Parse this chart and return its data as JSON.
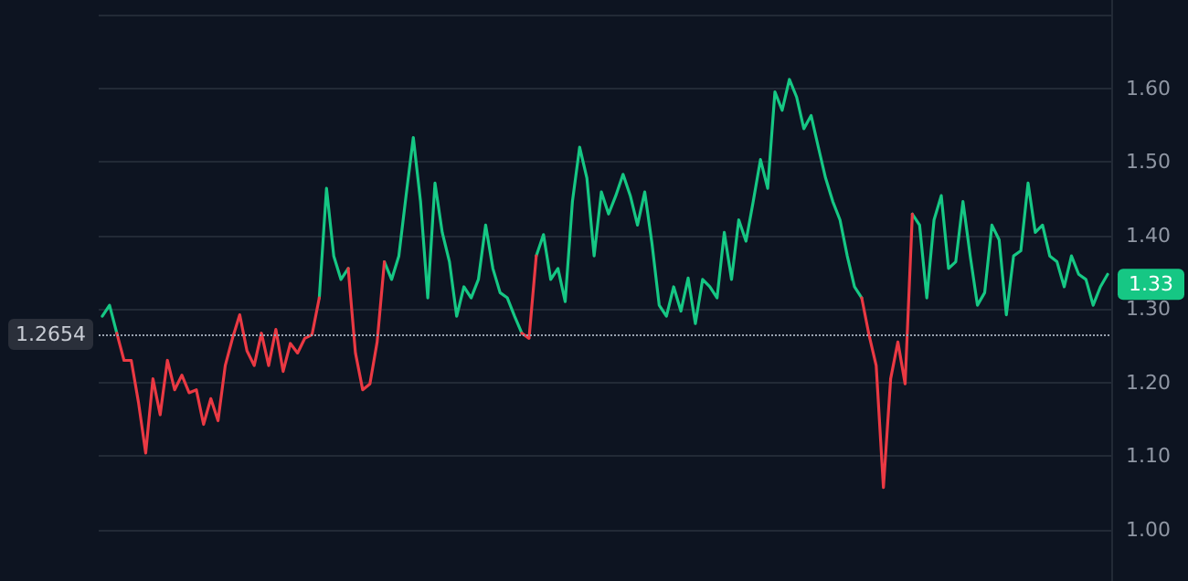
{
  "chart_data": {
    "type": "line",
    "categories": [
      null,
      null,
      null,
      null,
      null,
      null,
      null,
      null,
      null,
      null,
      null,
      null,
      null,
      null,
      null,
      null,
      null,
      null,
      null,
      null,
      null,
      null,
      null,
      null,
      null,
      null,
      null,
      null,
      null,
      null,
      null,
      null,
      null,
      null,
      null,
      null,
      null,
      null,
      null,
      null,
      null,
      null,
      null,
      null,
      null,
      null,
      null,
      null,
      null,
      null,
      null,
      null,
      null,
      null,
      null,
      null,
      null,
      null,
      null,
      null,
      null,
      null,
      null,
      null,
      null,
      null,
      null,
      null,
      null,
      null,
      null,
      null,
      null,
      null,
      null,
      null,
      null,
      null,
      null,
      null,
      null,
      null,
      null,
      null,
      null,
      null,
      null,
      null,
      null,
      null,
      null,
      null,
      null,
      null,
      null,
      null,
      null,
      null,
      null,
      null,
      null,
      null,
      null,
      null,
      null,
      null,
      null,
      null,
      null,
      null,
      null,
      null,
      null,
      null,
      null,
      null,
      null,
      null,
      null,
      null,
      null,
      null,
      null,
      null,
      null,
      null,
      null,
      null,
      null,
      null,
      null,
      null,
      null,
      null,
      null,
      null,
      null,
      null,
      null,
      null
    ],
    "series": [
      {
        "color": "#16c784",
        "values": [
          1.29,
          1.305,
          1.267,
          null,
          null,
          null,
          null,
          null,
          null,
          null,
          null,
          null,
          null,
          null,
          null,
          null,
          null,
          null,
          null,
          null,
          null,
          null,
          null,
          null,
          null,
          null,
          null,
          null,
          null,
          null,
          1.315,
          1.464,
          1.372,
          1.34,
          1.355,
          null,
          null,
          null,
          null,
          1.364,
          1.34,
          1.372,
          1.454,
          1.533,
          1.446,
          1.315,
          1.471,
          1.404,
          1.364,
          1.29,
          1.33,
          1.315,
          1.34,
          1.414,
          1.355,
          1.322,
          1.315,
          1.29,
          1.267,
          null,
          1.372,
          1.401,
          1.34,
          1.355,
          1.31,
          1.446,
          1.52,
          1.478,
          1.372,
          1.459,
          1.429,
          1.454,
          1.483,
          1.454,
          1.414,
          1.459,
          1.389,
          1.305,
          1.29,
          1.33,
          1.297,
          1.342,
          1.28,
          1.34,
          1.33,
          1.315,
          1.404,
          1.34,
          1.421,
          1.392,
          1.446,
          1.503,
          1.464,
          1.595,
          1.57,
          1.612,
          1.588,
          1.545,
          1.563,
          1.52,
          1.478,
          1.446,
          1.421,
          1.372,
          1.33,
          1.315,
          null,
          null,
          null,
          null,
          null,
          null,
          1.429,
          1.414,
          1.315,
          1.421,
          1.454,
          1.355,
          1.364,
          1.446,
          1.372,
          1.305,
          1.322,
          1.414,
          1.394,
          1.292,
          1.372,
          1.379,
          1.471,
          1.404,
          1.414,
          1.372,
          1.364,
          1.33,
          1.372,
          1.347,
          1.34,
          1.305,
          1.33,
          1.347
        ]
      },
      {
        "color": "#ea3943",
        "values": [
          null,
          null,
          1.267,
          1.23,
          1.23,
          1.173,
          1.104,
          1.205,
          1.156,
          1.23,
          1.19,
          1.21,
          1.186,
          1.19,
          1.143,
          1.178,
          1.148,
          1.223,
          1.26,
          1.292,
          1.243,
          1.223,
          1.267,
          1.223,
          1.272,
          1.215,
          1.253,
          1.24,
          1.26,
          1.265,
          1.315,
          null,
          null,
          null,
          1.355,
          1.24,
          1.19,
          1.198,
          1.255,
          1.364,
          null,
          null,
          null,
          null,
          null,
          null,
          null,
          null,
          null,
          null,
          null,
          null,
          null,
          null,
          null,
          null,
          null,
          null,
          1.267,
          1.26,
          1.372,
          null,
          null,
          null,
          null,
          null,
          null,
          null,
          null,
          null,
          null,
          null,
          null,
          null,
          null,
          null,
          null,
          null,
          null,
          null,
          null,
          null,
          null,
          null,
          null,
          null,
          null,
          null,
          null,
          null,
          null,
          null,
          null,
          null,
          null,
          null,
          null,
          null,
          null,
          null,
          null,
          null,
          null,
          null,
          null,
          1.315,
          1.265,
          1.223,
          1.057,
          1.205,
          1.255,
          1.198,
          1.429,
          null,
          null,
          null,
          null,
          null,
          null,
          null,
          null,
          null,
          null,
          null,
          null,
          null,
          null,
          null,
          null,
          null,
          null,
          null,
          null,
          null,
          null,
          null,
          null,
          null,
          null,
          null
        ]
      }
    ],
    "ylim": [
      0.93,
      1.72
    ],
    "yticks": [
      {
        "value": 1,
        "label": "1.00"
      },
      {
        "value": 1.1,
        "label": "1.10"
      },
      {
        "value": 1.2,
        "label": "1.20"
      },
      {
        "value": 1.3,
        "label": "1.30"
      },
      {
        "value": 1.4,
        "label": "1.40"
      },
      {
        "value": 1.5,
        "label": "1.50"
      },
      {
        "value": 1.6,
        "label": "1.60"
      },
      {
        "value": 1.7,
        "label": null
      }
    ],
    "ref_lines": [
      {
        "axis": "y",
        "value": 1.2654,
        "label": "1.2654",
        "line_style": "dotted"
      }
    ],
    "annotations": [
      "1.33"
    ],
    "grid": "y",
    "line_style": "solid"
  }
}
